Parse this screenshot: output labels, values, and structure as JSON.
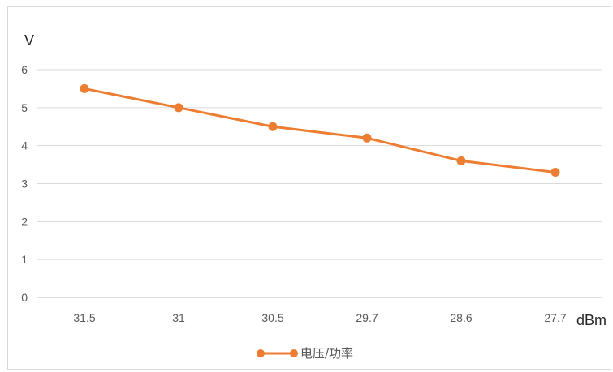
{
  "chart_data": {
    "type": "line",
    "title": "",
    "xlabel": "dBm",
    "ylabel": "V",
    "categories": [
      "31.5",
      "31",
      "30.5",
      "29.7",
      "28.6",
      "27.7"
    ],
    "series": [
      {
        "name": "电压/功率",
        "values": [
          5.5,
          5.0,
          4.5,
          4.2,
          3.6,
          3.3
        ],
        "color": "#ed7d31"
      }
    ],
    "ylim": [
      0,
      6
    ],
    "yticks": [
      "0",
      "1",
      "2",
      "3",
      "4",
      "5",
      "6"
    ],
    "grid": true,
    "legend_position": "bottom"
  }
}
